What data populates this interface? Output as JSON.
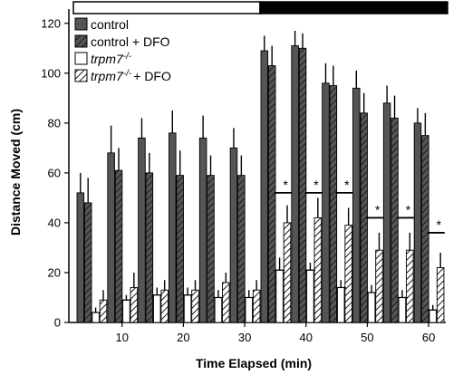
{
  "chart_data": {
    "type": "bar",
    "title": "",
    "xlabel": "Time Elapsed (min)",
    "ylabel": "Distance Moved (cm)",
    "ylim": [
      0,
      125
    ],
    "yticks": [
      0,
      20,
      40,
      60,
      80,
      100,
      120
    ],
    "xtick_labels": [
      "10",
      "20",
      "30",
      "40",
      "50",
      "60"
    ],
    "bins": 12,
    "series": [
      {
        "name": "control",
        "style": "solid-dark",
        "values": [
          52,
          68,
          74,
          76,
          74,
          70,
          109,
          111,
          96,
          94,
          88,
          80
        ],
        "errors": [
          8,
          11,
          8,
          9,
          9,
          8,
          6,
          6,
          8,
          7,
          7,
          6
        ]
      },
      {
        "name": "control + DFO",
        "style": "hatched-dark",
        "values": [
          48,
          61,
          60,
          59,
          59,
          59,
          103,
          110,
          95,
          84,
          82,
          75
        ],
        "errors": [
          10,
          9,
          8,
          10,
          8,
          8,
          8,
          6,
          8,
          8,
          9,
          9
        ]
      },
      {
        "name": "trpm7",
        "name_sup": "-/-",
        "style": "open",
        "values": [
          4,
          9,
          11,
          11,
          10,
          10,
          21,
          21,
          14,
          12,
          10,
          5
        ],
        "errors": [
          2,
          2,
          3,
          3,
          3,
          3,
          5,
          3,
          3,
          3,
          3,
          2
        ]
      },
      {
        "name": "trpm7",
        "name_sup": "-/-",
        "name_suffix": "+ DFO",
        "style": "hatched-open",
        "values": [
          9,
          14,
          13,
          13,
          16,
          13,
          40,
          42,
          39,
          29,
          29,
          22
        ],
        "errors": [
          4,
          6,
          4,
          4,
          4,
          4,
          7,
          8,
          7,
          7,
          7,
          6
        ]
      }
    ],
    "significance": {
      "marker": "*",
      "bins": [
        6,
        7,
        8,
        9,
        10,
        11
      ],
      "levels": [
        52,
        52,
        52,
        42,
        42,
        36
      ]
    },
    "light_dark_bar": {
      "light_bins": [
        0,
        5
      ],
      "dark_bins": [
        6,
        11
      ]
    },
    "legend_placement": "top-left",
    "colors": {
      "dark": "#555555",
      "hatch_line": "#2a2a2a",
      "edge": "#000000",
      "light_box": "#ffffff",
      "dark_box": "#000000"
    }
  }
}
